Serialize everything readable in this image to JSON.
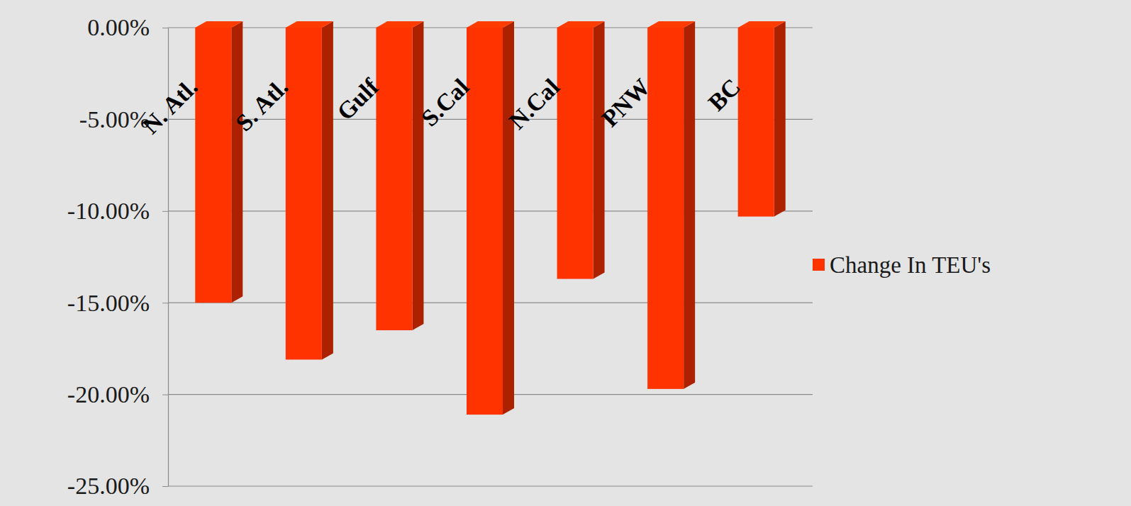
{
  "chart_data": {
    "type": "bar",
    "categories": [
      "N. Atl.",
      "S. Atl.",
      "Gulf",
      "S.Cal",
      "N.Cal",
      "PNW",
      "BC"
    ],
    "series": [
      {
        "name": "Change In TEU's",
        "color": "#ff3300",
        "values": [
          -15.0,
          -18.1,
          -16.5,
          -21.1,
          -13.7,
          -19.7,
          -10.3
        ]
      }
    ],
    "ylim": [
      -25,
      0
    ],
    "yticks": [
      {
        "value": 0,
        "label": "0.00%"
      },
      {
        "value": -5,
        "label": "-5.00%"
      },
      {
        "value": -10,
        "label": "-10.00%"
      },
      {
        "value": -15,
        "label": "-15.00%"
      },
      {
        "value": -20,
        "label": "-20.00%"
      },
      {
        "value": -25,
        "label": "-25.00%"
      }
    ],
    "grid": true,
    "legend": "right"
  }
}
